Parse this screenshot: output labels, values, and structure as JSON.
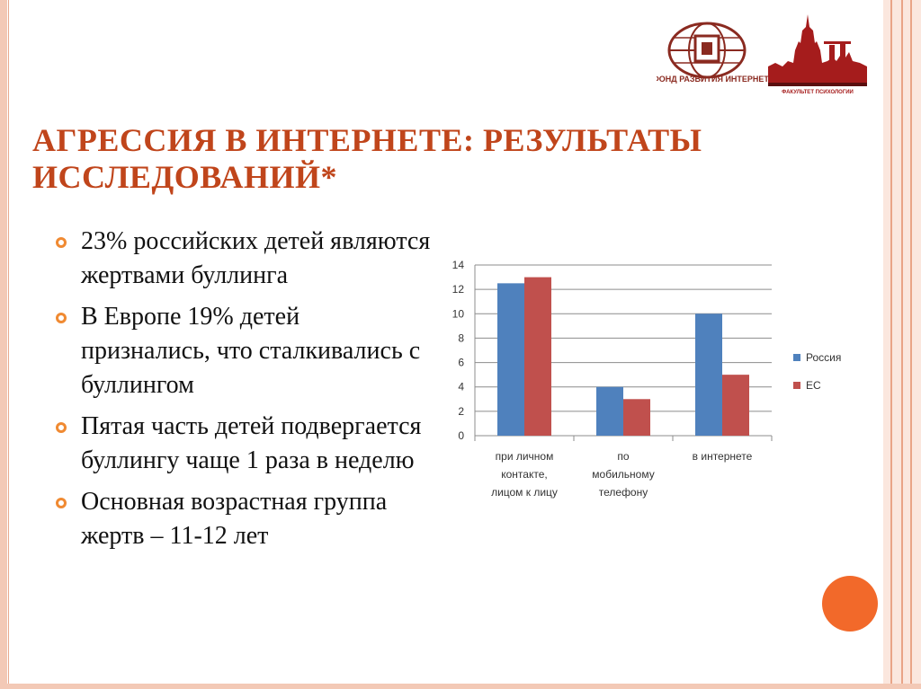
{
  "header": {
    "logo1_text": "ФОНД РАЗВИТИЯ ИНТЕРНЕТ",
    "logo2_text": "ФАКУЛЬТЕТ ПСИХОЛОГИИ"
  },
  "title": "АГРЕССИЯ В ИНТЕРНЕТЕ: РЕЗУЛЬТАТЫ ИССЛЕДОВАНИЙ*",
  "bullets": [
    "23% российских детей являются жертвами буллинга",
    "В Европе 19% детей признались, что сталкивались с буллингом",
    "Пятая часть детей подвергается буллингу чаще 1 раза в неделю",
    "Основная возрастная группа жертв – 11-12 лет"
  ],
  "colors": {
    "accent": "#c0451b",
    "bullet": "#f08a32",
    "russia": "#4f81bd",
    "eu": "#c0504d",
    "circle": "#f2692a"
  },
  "chart_data": {
    "type": "bar",
    "categories": [
      [
        "при личном",
        "контакте,",
        "лицом к лицу"
      ],
      [
        "по",
        "мобильному",
        "телефону"
      ],
      [
        "в интернете"
      ]
    ],
    "series": [
      {
        "name": "Россия",
        "values": [
          12.5,
          4,
          10
        ],
        "color": "#4f81bd"
      },
      {
        "name": "ЕС",
        "values": [
          13,
          3,
          5
        ],
        "color": "#c0504d"
      }
    ],
    "ylim": [
      0,
      14
    ],
    "yticks": [
      0,
      2,
      4,
      6,
      8,
      10,
      12,
      14
    ],
    "grid": true,
    "legend": "right"
  }
}
